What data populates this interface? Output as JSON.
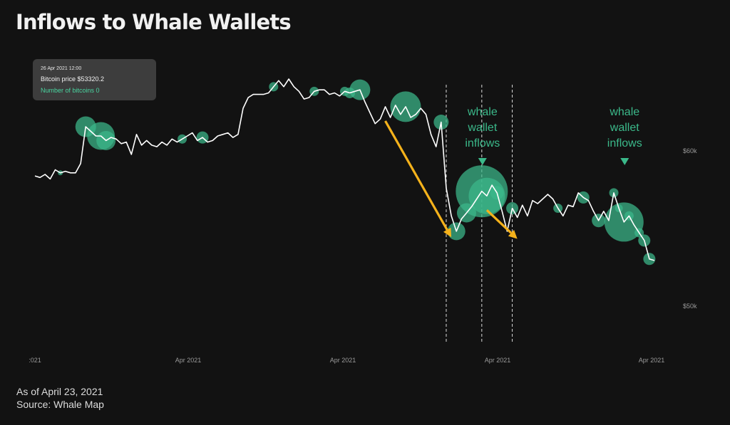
{
  "title": "Inflows to Whale Wallets",
  "tooltip": {
    "date": "26 Apr 2021 12:00",
    "price_line": "Bitcoin price $53320.2",
    "count_line": "Number of bitcoins 0"
  },
  "footnote": {
    "as_of": "As of April 23, 2021",
    "source": "Source: Whale Map"
  },
  "colors": {
    "background": "#121212",
    "line": "#ffffff",
    "bubble": "#3bb98a",
    "annotation_text": "#3bb98a",
    "arrow": "#f5b21b",
    "axis_label": "#9a9a9a"
  },
  "annotations": [
    {
      "lines": [
        "whale",
        "wallet",
        "inflows"
      ],
      "marker": "chevron-down"
    },
    {
      "lines": [
        "whale",
        "wallet",
        "inflows"
      ],
      "marker": "chevron-down"
    }
  ],
  "chart_data": {
    "type": "line",
    "series": [
      {
        "values": [
          57800,
          57700,
          57900,
          57600,
          58200,
          58000,
          58100,
          58000,
          58000,
          58600,
          61000,
          60700,
          60400,
          60400,
          60100,
          60300,
          60200,
          59900,
          60000,
          59200,
          60500,
          59800,
          60100,
          59800,
          59700,
          60000,
          59800,
          60200,
          60000,
          60200,
          60400,
          60600,
          60100,
          60300,
          60000,
          60100,
          60400,
          60500,
          60600,
          60300,
          60500,
          62200,
          62900,
          63100,
          63100,
          63100,
          63200,
          63600,
          64000,
          63600,
          64100,
          63600,
          63300,
          62800,
          62900,
          63300,
          63400,
          63400,
          63100,
          63200,
          63000,
          63300,
          63200,
          63300,
          63400,
          62600,
          61900,
          61200,
          61500,
          62300,
          61600,
          62400,
          61800,
          62300,
          61600,
          61800,
          62200,
          61800,
          60500,
          59700,
          61300,
          57000,
          55200,
          54200,
          55000,
          55400,
          55800,
          56300,
          56800,
          56500,
          57200,
          56700,
          55500,
          54200,
          55700,
          55100,
          55900,
          55200,
          56200,
          56000,
          56300,
          56600,
          56300,
          55700,
          55200,
          55900,
          55800,
          56700,
          56400,
          56200,
          55500,
          54900,
          55500,
          54900,
          56700,
          55700,
          54800,
          55200,
          54600,
          54100,
          53600,
          52400,
          52300
        ],
        "color": "#ffffff"
      }
    ],
    "bubbles": [
      {
        "i": 5,
        "size": 0
      },
      {
        "i": 10,
        "size": 11
      },
      {
        "i": 13,
        "size": 16
      },
      {
        "i": 14,
        "size": 10
      },
      {
        "i": 29,
        "size": 3
      },
      {
        "i": 33,
        "size": 5
      },
      {
        "i": 47,
        "size": 3
      },
      {
        "i": 55,
        "size": 3
      },
      {
        "i": 61,
        "size": 3
      },
      {
        "i": 62,
        "size": 4
      },
      {
        "i": 64,
        "size": 11
      },
      {
        "i": 73,
        "size": 18
      },
      {
        "i": 80,
        "size": 7
      },
      {
        "i": 83,
        "size": 9
      },
      {
        "i": 85,
        "size": 10
      },
      {
        "i": 88,
        "size": 33
      },
      {
        "i": 89,
        "size": 22
      },
      {
        "i": 91,
        "size": 6
      },
      {
        "i": 94,
        "size": 5
      },
      {
        "i": 103,
        "size": 3
      },
      {
        "i": 108,
        "size": 5
      },
      {
        "i": 111,
        "size": 6
      },
      {
        "i": 114,
        "size": 3
      },
      {
        "i": 115,
        "size": 2
      },
      {
        "i": 116,
        "size": 24
      },
      {
        "i": 117,
        "size": 3
      },
      {
        "i": 119,
        "size": 3
      },
      {
        "i": 120,
        "size": 5
      },
      {
        "i": 121,
        "size": 5
      }
    ],
    "marker_x": [
      81,
      88,
      94
    ],
    "arrows": [
      {
        "from": 69,
        "to": 82
      },
      {
        "from": 89,
        "to": 95
      }
    ],
    "x_tick_labels": [
      ":021",
      "Apr 2021",
      "Apr 2021",
      "Apr 2021",
      "Apr 2021"
    ],
    "y_tick_labels": [
      "$60k",
      "$50k"
    ],
    "ylim": [
      46000,
      66000
    ],
    "grid": false,
    "legend": "none"
  }
}
